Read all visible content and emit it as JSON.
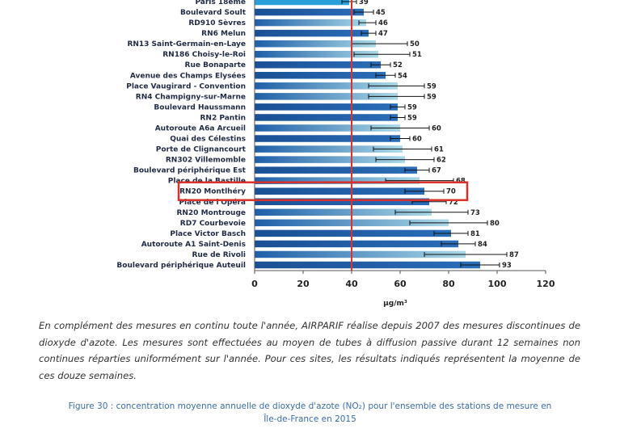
{
  "chart_data": {
    "type": "bar",
    "orientation": "horizontal",
    "categories": [
      "Paris 18eme",
      "Boulevard Soult",
      "RD910 Sèvres",
      "RN6 Melun",
      "RN13 Saint-Germain-en-Laye",
      "RN186 Choisy-le-Roi",
      "Rue Bonaparte",
      "Avenue des Champs Elysées",
      "Place Vaugirard - Convention",
      "RN4 Champigny-sur-Marne",
      "Boulevard Haussmann",
      "RN2 Pantin",
      "Autoroute A6a Arcueil",
      "Quai des Célestins",
      "Porte de Clignancourt",
      "RN302 Villemomble",
      "Boulevard périphérique Est",
      "Place de la Bastille",
      "RN20 Montlhéry",
      "Place de l'Opéra",
      "RN20 Montrouge",
      "RD7 Courbevoie",
      "Place Victor Basch",
      "Autoroute A1 Saint-Denis",
      "Rue de Rivoli",
      "Boulevard périphérique Auteuil"
    ],
    "values": [
      39,
      45,
      46,
      47,
      50,
      51,
      52,
      54,
      59,
      59,
      59,
      59,
      60,
      60,
      61,
      62,
      67,
      68,
      70,
      72,
      73,
      80,
      81,
      84,
      87,
      93
    ],
    "value_labels": [
      "39",
      "45",
      "46",
      "47",
      "50",
      "51",
      "52",
      "54",
      "59",
      "59",
      "59",
      "59",
      "60",
      "60",
      "61",
      "62",
      "67",
      "68",
      "70",
      "72",
      "73",
      "80",
      "81",
      "84",
      "87",
      "93"
    ],
    "bar_style": [
      "dark",
      "dark",
      "light",
      "dark",
      "light",
      "light",
      "dark",
      "dark",
      "light",
      "light",
      "dark",
      "dark",
      "light",
      "dark",
      "light",
      "light",
      "dark",
      "light",
      "dark",
      "dark",
      "light",
      "light",
      "dark",
      "dark",
      "light",
      "dark"
    ],
    "error_low": [
      36,
      41,
      43,
      44,
      40,
      41,
      48,
      50,
      47,
      47,
      56,
      56,
      48,
      56,
      49,
      50,
      62,
      54,
      62,
      65,
      58,
      64,
      74,
      77,
      70,
      85
    ],
    "error_high": [
      42,
      49,
      50,
      50,
      63,
      64,
      56,
      58,
      70,
      70,
      62,
      62,
      72,
      64,
      73,
      74,
      72,
      82,
      78,
      79,
      88,
      96,
      88,
      91,
      104,
      101
    ],
    "xlim": [
      0,
      120
    ],
    "x_ticks": [
      "0",
      "20",
      "40",
      "60",
      "80",
      "100",
      "120"
    ],
    "xlabel": "µg/m³",
    "reference_line": 40,
    "highlighted_category": "RN20 Montlhéry",
    "grid": false,
    "colors": {
      "bar_dark": "#1f5fa8",
      "bar_light_start": "#1f5fa8",
      "bar_light_end": "#a9d8e6",
      "bar_top": "#2a9fd8",
      "error_bar": "#111111",
      "reference_line": "#e0312f",
      "highlight_box": "#d9302c",
      "axis": "#555555"
    }
  },
  "text": {
    "paragraph": "En complément des mesures en continu toute l'année, AIRPARIF réalise depuis 2007 des mesures discontinues de dioxyde d'azote. Les mesures sont effectuées au moyen de tubes à diffusion passive durant 12 semaines non continues réparties uniformément sur l'année. Pour ces sites, les résultats indiqués représentent la moyenne de ces douze semaines.",
    "caption_line1": "Figure 30 : concentration moyenne annuelle de dioxyde d'azote (NO₂) pour l'ensemble des stations de mesure en",
    "caption_line2": "Île-de-France en 2015"
  }
}
